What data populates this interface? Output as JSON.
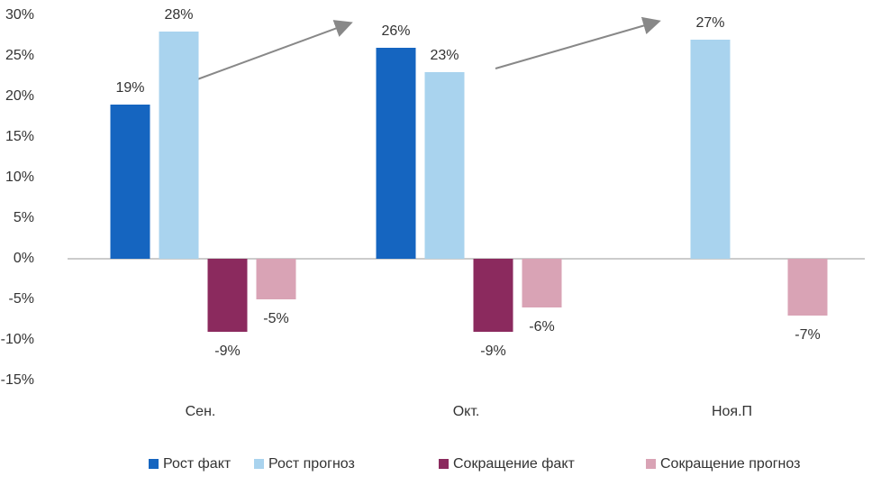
{
  "chart_data": {
    "type": "bar",
    "categories": [
      "Сен.",
      "Окт.",
      "Ноя.П"
    ],
    "series": [
      {
        "name": "Рост факт",
        "color": "#1565c0",
        "values": [
          19,
          26,
          null
        ],
        "value_labels": [
          "19%",
          "26%",
          null
        ]
      },
      {
        "name": "Рост прогноз",
        "color": "#a9d3ee",
        "values": [
          28,
          23,
          27
        ],
        "value_labels": [
          "28%",
          "23%",
          "27%"
        ]
      },
      {
        "name": "Сокращение факт",
        "color": "#8b2a5e",
        "values": [
          -9,
          -9,
          null
        ],
        "value_labels": [
          "-9%",
          "-9%",
          null
        ]
      },
      {
        "name": "Сокращение прогноз",
        "color": "#d9a3b5",
        "values": [
          -5,
          -6,
          -7
        ],
        "value_labels": [
          "-5%",
          "-6%",
          "-7%"
        ]
      }
    ],
    "ylim": [
      -15,
      30
    ],
    "yticks": [
      {
        "value": -15,
        "label": "-15%"
      },
      {
        "value": -10,
        "label": "-10%"
      },
      {
        "value": -5,
        "label": "-5%"
      },
      {
        "value": 0,
        "label": "0%"
      },
      {
        "value": 5,
        "label": "5%"
      },
      {
        "value": 10,
        "label": "10%"
      },
      {
        "value": 15,
        "label": "15%"
      },
      {
        "value": 20,
        "label": "20%"
      },
      {
        "value": 25,
        "label": "25%"
      },
      {
        "value": 30,
        "label": "30%"
      }
    ],
    "grid": false,
    "legend": "bottom"
  }
}
